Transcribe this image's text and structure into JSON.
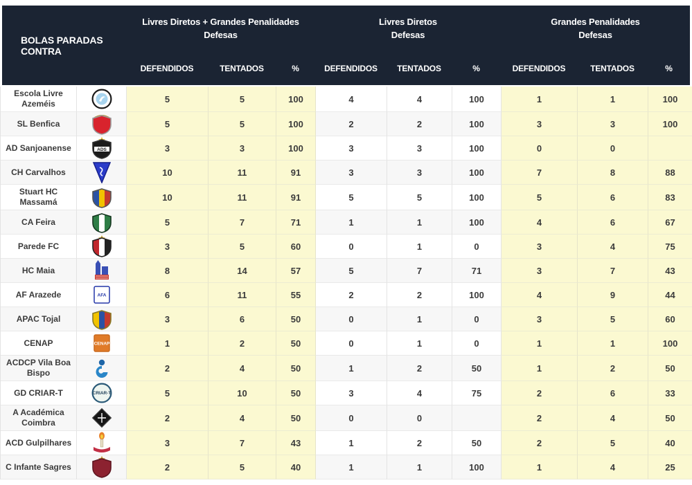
{
  "table": {
    "title": "BOLAS PARADAS CONTRA",
    "groups": [
      {
        "line1": "Livres Diretos + Grandes Penalidades",
        "line2": "Defesas"
      },
      {
        "line1": "Livres Diretos",
        "line2": "Defesas"
      },
      {
        "line1": "Grandes Penalidades",
        "line2": "Defesas"
      }
    ],
    "sub_headers": [
      "DEFENDIDOS",
      "TENTADOS",
      "%"
    ],
    "colors": {
      "header_bg": "#1b2433",
      "header_text": "#ffffff",
      "highlight_column_bg": "#fbf9d1",
      "row_alt_bg": "#f7f7f7",
      "row_bg": "#ffffff",
      "cell_text": "#3b3b3b",
      "border": "#e3e3e3"
    },
    "rows": [
      {
        "team": "Escola Livre Azeméis",
        "logo": {
          "kind": "circle",
          "fill": "#ffffff",
          "stroke": "#1a1a1a",
          "accent": "#a8d4ee"
        },
        "ldgp": [
          "5",
          "5",
          "100"
        ],
        "ld": [
          "4",
          "4",
          "100"
        ],
        "gp": [
          "1",
          "1",
          "100"
        ]
      },
      {
        "team": "SL Benfica",
        "logo": {
          "kind": "shield",
          "fill": "#d8232d",
          "stroke": "#9a9a9a",
          "wings": "#b98f2f"
        },
        "ldgp": [
          "5",
          "5",
          "100"
        ],
        "ld": [
          "2",
          "2",
          "100"
        ],
        "gp": [
          "3",
          "3",
          "100"
        ]
      },
      {
        "team": "AD Sanjoanense",
        "logo": {
          "kind": "shield",
          "fill": "#1c1c1c",
          "stroke": "#333333",
          "band": "#ffffff",
          "label": "ADS",
          "labelColor": "#111111",
          "star": "#e8c23a"
        },
        "ldgp": [
          "3",
          "3",
          "100"
        ],
        "ld": [
          "3",
          "3",
          "100"
        ],
        "gp": [
          "0",
          "0",
          ""
        ]
      },
      {
        "team": "CH Carvalhos",
        "logo": {
          "kind": "pennant",
          "fill": "#2b3cc9",
          "stroke": "#16208c"
        },
        "ldgp": [
          "10",
          "11",
          "91"
        ],
        "ld": [
          "3",
          "3",
          "100"
        ],
        "gp": [
          "7",
          "8",
          "88"
        ]
      },
      {
        "team": "Stuart HC Massamá",
        "logo": {
          "kind": "stripes",
          "colors": [
            "#2b52a3",
            "#f2c300",
            "#c43a2e"
          ],
          "stroke": "#555555"
        },
        "ldgp": [
          "10",
          "11",
          "91"
        ],
        "ld": [
          "5",
          "5",
          "100"
        ],
        "gp": [
          "5",
          "6",
          "83"
        ]
      },
      {
        "team": "CA Feira",
        "logo": {
          "kind": "stripes",
          "colors": [
            "#2e7d46",
            "#ffffff",
            "#2e7d46"
          ],
          "stroke": "#15361f"
        },
        "ldgp": [
          "5",
          "7",
          "71"
        ],
        "ld": [
          "1",
          "1",
          "100"
        ],
        "gp": [
          "4",
          "6",
          "67"
        ]
      },
      {
        "team": "Parede FC",
        "logo": {
          "kind": "stripes",
          "colors": [
            "#c0272d",
            "#ffffff",
            "#222222"
          ],
          "stroke": "#222222",
          "star": "#caa53f"
        },
        "ldgp": [
          "3",
          "5",
          "60"
        ],
        "ld": [
          "0",
          "1",
          "0"
        ],
        "gp": [
          "3",
          "4",
          "75"
        ]
      },
      {
        "team": "HC Maia",
        "logo": {
          "kind": "castle",
          "fill": "#3a50b5",
          "accent": "#c9372c"
        },
        "ldgp": [
          "8",
          "14",
          "57"
        ],
        "ld": [
          "5",
          "7",
          "71"
        ],
        "gp": [
          "3",
          "7",
          "43"
        ]
      },
      {
        "team": "AF Arazede",
        "logo": {
          "kind": "block",
          "fill": "#ffffff",
          "stroke": "#2437a8",
          "label": "AFA",
          "labelColor": "#2437a8"
        },
        "ldgp": [
          "6",
          "11",
          "55"
        ],
        "ld": [
          "2",
          "2",
          "100"
        ],
        "gp": [
          "4",
          "9",
          "44"
        ]
      },
      {
        "team": "APAC Tojal",
        "logo": {
          "kind": "stripes",
          "colors": [
            "#f2c300",
            "#2b52a3",
            "#c43a2e"
          ],
          "stroke": "#8a7a24"
        },
        "ldgp": [
          "3",
          "6",
          "50"
        ],
        "ld": [
          "0",
          "1",
          "0"
        ],
        "gp": [
          "3",
          "5",
          "60"
        ]
      },
      {
        "team": "CENAP",
        "logo": {
          "kind": "block",
          "fill": "#e07b28",
          "stroke": "#c96a1e",
          "label": "CENAP",
          "labelColor": "#ffffff"
        },
        "ldgp": [
          "1",
          "2",
          "50"
        ],
        "ld": [
          "0",
          "1",
          "0"
        ],
        "gp": [
          "1",
          "1",
          "100"
        ]
      },
      {
        "team": "ACDCP Vila Boa Bispo",
        "logo": {
          "kind": "emark",
          "fill": "#1f66a8",
          "accent": "#2a86c8"
        },
        "ldgp": [
          "2",
          "4",
          "50"
        ],
        "ld": [
          "1",
          "2",
          "50"
        ],
        "gp": [
          "1",
          "2",
          "50"
        ]
      },
      {
        "team": "GD CRIAR-T",
        "logo": {
          "kind": "circle",
          "fill": "#eef5f0",
          "stroke": "#2b5a78",
          "label": "CRIAR-T",
          "labelColor": "#1d3d57"
        },
        "ldgp": [
          "5",
          "10",
          "50"
        ],
        "ld": [
          "3",
          "4",
          "75"
        ],
        "gp": [
          "2",
          "6",
          "33"
        ]
      },
      {
        "team": "A Académica Coimbra",
        "logo": {
          "kind": "diamond",
          "fill": "#161616",
          "stroke": "#444444"
        },
        "ldgp": [
          "2",
          "4",
          "50"
        ],
        "ld": [
          "0",
          "0",
          ""
        ],
        "gp": [
          "2",
          "4",
          "50"
        ]
      },
      {
        "team": "ACD Gulpilhares",
        "logo": {
          "kind": "torch",
          "fill": "#c22f45",
          "accent": "#e8822a"
        },
        "ldgp": [
          "3",
          "7",
          "43"
        ],
        "ld": [
          "1",
          "2",
          "50"
        ],
        "gp": [
          "2",
          "5",
          "40"
        ]
      },
      {
        "team": "C Infante Sagres",
        "logo": {
          "kind": "shield",
          "fill": "#8c2230",
          "stroke": "#5e1520",
          "star": "#c9a23f"
        },
        "ldgp": [
          "2",
          "5",
          "40"
        ],
        "ld": [
          "1",
          "1",
          "100"
        ],
        "gp": [
          "1",
          "4",
          "25"
        ]
      }
    ]
  }
}
